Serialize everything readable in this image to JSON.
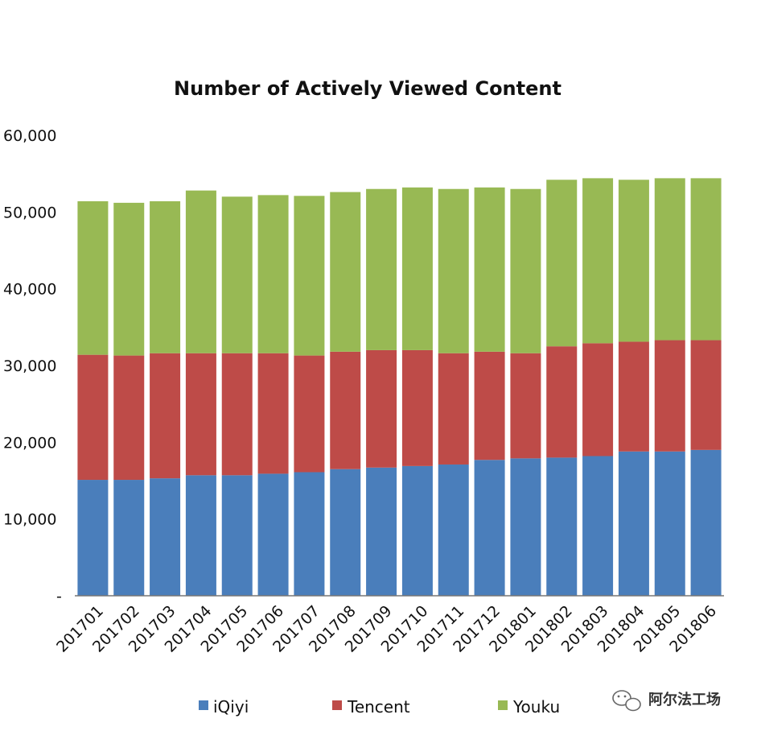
{
  "chart_data": {
    "type": "bar",
    "stacked": true,
    "title": "Number of Actively Viewed Content",
    "xlabel": "",
    "ylabel": "",
    "ylim": [
      0,
      60000
    ],
    "y_ticks": [
      0,
      10000,
      20000,
      30000,
      40000,
      50000,
      60000
    ],
    "y_tick_labels": [
      "-",
      "10,000",
      "20,000",
      "30,000",
      "40,000",
      "50,000",
      "60,000"
    ],
    "grid": false,
    "legend_position": "bottom",
    "categories": [
      "201701",
      "201702",
      "201703",
      "201704",
      "201705",
      "201706",
      "201707",
      "201708",
      "201709",
      "201710",
      "201711",
      "201712",
      "201801",
      "201802",
      "201803",
      "201804",
      "201805",
      "201806"
    ],
    "series": [
      {
        "name": "iQiyi",
        "color": "#4a7ebb",
        "values": [
          15100,
          15100,
          15300,
          15700,
          15700,
          15900,
          16100,
          16500,
          16700,
          16900,
          17100,
          17700,
          17900,
          18000,
          18200,
          18800,
          18800,
          19000
        ]
      },
      {
        "name": "Tencent",
        "color": "#be4b48",
        "values": [
          16300,
          16200,
          16300,
          15900,
          15900,
          15700,
          15200,
          15300,
          15300,
          15100,
          14500,
          14100,
          13700,
          14500,
          14700,
          14300,
          14500,
          14300
        ]
      },
      {
        "name": "Youku",
        "color": "#98b954",
        "values": [
          20000,
          19900,
          19800,
          21200,
          20400,
          20600,
          20800,
          20800,
          21000,
          21200,
          21400,
          21400,
          21400,
          21700,
          21500,
          21100,
          21100,
          21100
        ]
      }
    ]
  },
  "watermark": {
    "text": "阿尔法工场",
    "icon": "wechat-icon"
  }
}
